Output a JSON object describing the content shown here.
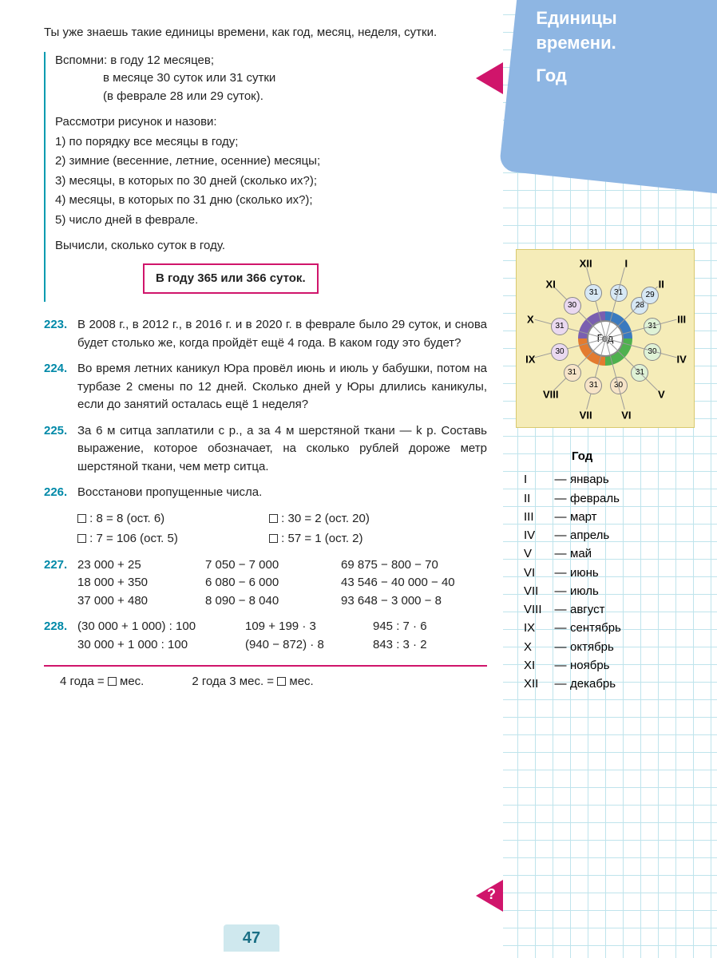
{
  "colors": {
    "accent_teal": "#0089a8",
    "accent_pink": "#d0156b",
    "sidebar_panel": "#8eb6e3",
    "grid_line": "#bfe4ec",
    "pagenum_bg": "#cfe8ee",
    "diagram_bg": "#f5ecb8"
  },
  "header": {
    "line1": "Единицы",
    "line2": "времени.",
    "line3": "Год"
  },
  "intro": "Ты уже знаешь такие единицы времени, как год, месяц, неделя, сутки.",
  "recall": {
    "lead": "Вспомни: в году 12 месяцев;",
    "l2": "в месяце 30 суток или 31 сутки",
    "l3": "(в феврале 28 или 29 суток)."
  },
  "consider": "Рассмотри рисунок и назови:",
  "list": [
    "1) по порядку все месяцы в году;",
    "2) зимние (весенние, летние, осенние) месяцы;",
    "3) месяцы, в которых по 30 дней (сколько их?);",
    "4) месяцы, в которых по 31 дню (сколько их?);",
    "5) число дней в феврале."
  ],
  "calc": "Вычисли, сколько суток в году.",
  "rule": "В году 365 или 366 суток.",
  "tasks": {
    "t223": {
      "n": "223.",
      "txt": "В 2008 г., в 2012 г., в 2016 г. и в 2020 г. в феврале было 29 суток, и снова будет столько же, когда пройдёт ещё 4 года. В каком году это будет?"
    },
    "t224": {
      "n": "224.",
      "txt": "Во время летних каникул Юра провёл июнь и июль у бабушки, потом на турбазе 2 смены по 12 дней. Сколько дней у Юры длились каникулы, если до занятий осталась ещё 1 неделя?"
    },
    "t225": {
      "n": "225.",
      "txt": "За 6 м ситца заплатили c р., а за 4 м шерстяной ткани — k р. Составь выражение, которое обозначает, на сколько рублей дороже метр шерстяной ткани, чем метр ситца."
    },
    "t226": {
      "n": "226.",
      "txt": "Восстанови пропущенные числа."
    },
    "t227": {
      "n": "227."
    },
    "t228": {
      "n": "228."
    }
  },
  "eq226": {
    "a1": " : 8 = 8  (ост. 6)",
    "b1": " : 30 = 2  (ост. 20)",
    "a2": " : 7 = 106  (ост. 5)",
    "b2": " : 57 = 1  (ост. 2)"
  },
  "eq227": {
    "r1c1": "23 000 + 25",
    "r1c2": "7 050 − 7 000",
    "r1c3": "69 875 − 800 − 70",
    "r2c1": "18 000 + 350",
    "r2c2": "6 080 − 6 000",
    "r2c3": "43 546 − 40 000 − 40",
    "r3c1": "37 000 + 480",
    "r3c2": "8 090 − 8 040",
    "r3c3": "93 648 − 3 000 − 8"
  },
  "eq228": {
    "r1c1": "(30 000 + 1 000) : 100",
    "r1c2": "109 + 199 · 3",
    "r1c3": "945 : 7 · 6",
    "r2c1": "30 000 + 1 000 : 100",
    "r2c2": "(940 − 872) · 8",
    "r2c3": "843 : 3 · 2"
  },
  "footer": {
    "q1": "4 года =  мес.",
    "q2": "2 года 3 мес. =  мес."
  },
  "page_number": "47",
  "diagram": {
    "center": "Год",
    "months": [
      {
        "rn": "I",
        "deg": 75,
        "days": "31",
        "col": "#d7e8f5"
      },
      {
        "rn": "II",
        "deg": 45,
        "days": "28",
        "col": "#d7e8f5"
      },
      {
        "rn": "III",
        "deg": 15,
        "days": "31",
        "col": "#dff2d6"
      },
      {
        "rn": "IV",
        "deg": -15,
        "days": "30",
        "col": "#dff2d6"
      },
      {
        "rn": "V",
        "deg": -45,
        "days": "31",
        "col": "#dff2d6"
      },
      {
        "rn": "VI",
        "deg": -75,
        "days": "30",
        "col": "#f7e4c8"
      },
      {
        "rn": "VII",
        "deg": -105,
        "days": "31",
        "col": "#f7e4c8"
      },
      {
        "rn": "VIII",
        "deg": -135,
        "days": "31",
        "col": "#f7e4c8"
      },
      {
        "rn": "IX",
        "deg": -165,
        "days": "30",
        "col": "#ead9f0"
      },
      {
        "rn": "X",
        "deg": -195,
        "days": "31",
        "col": "#ead9f0"
      },
      {
        "rn": "XI",
        "deg": -225,
        "days": "30",
        "col": "#ead9f0"
      },
      {
        "rn": "XII",
        "deg": -255,
        "days": "31",
        "col": "#d7e8f5"
      }
    ],
    "feb_extra": "29"
  },
  "month_table": {
    "header": "Год",
    "rows": [
      {
        "rn": "I",
        "name": "январь"
      },
      {
        "rn": "II",
        "name": "февраль"
      },
      {
        "rn": "III",
        "name": "март"
      },
      {
        "rn": "IV",
        "name": "апрель"
      },
      {
        "rn": "V",
        "name": "май"
      },
      {
        "rn": "VI",
        "name": "июнь"
      },
      {
        "rn": "VII",
        "name": "июль"
      },
      {
        "rn": "VIII",
        "name": "август"
      },
      {
        "rn": "IX",
        "name": "сентябрь"
      },
      {
        "rn": "X",
        "name": "октябрь"
      },
      {
        "rn": "XI",
        "name": "ноябрь"
      },
      {
        "rn": "XII",
        "name": "декабрь"
      }
    ]
  }
}
